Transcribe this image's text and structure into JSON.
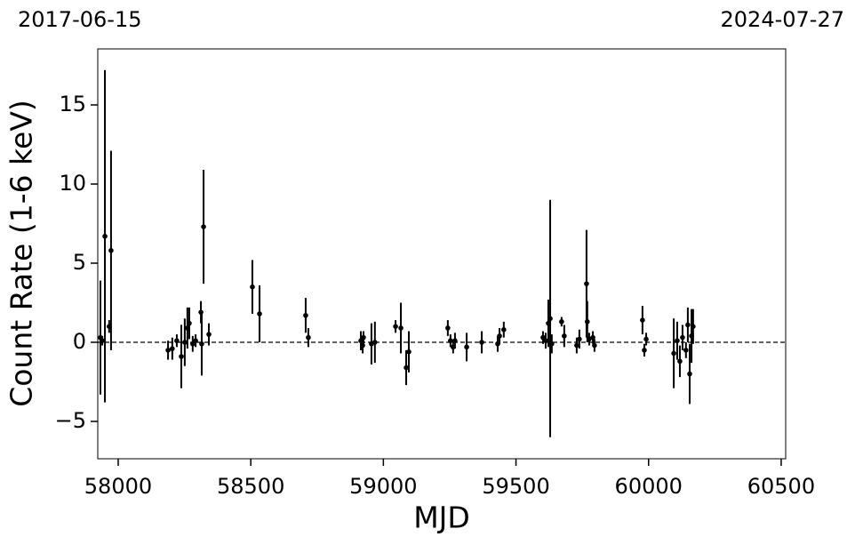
{
  "chart_data": {
    "type": "scatter",
    "xlabel": "MJD",
    "ylabel": "Count Rate (1-6 keV)",
    "annotations": [
      "2017-06-15",
      "2024-07-27"
    ],
    "xlim": [
      57923,
      60517
    ],
    "ylim": [
      -7.36,
      18.54
    ],
    "xticks": [
      58000,
      58500,
      59000,
      59500,
      60000,
      60500
    ],
    "yticks": [
      {
        "value": -5,
        "label": "−5"
      },
      0,
      5,
      10,
      15
    ],
    "hline": 0,
    "series": [
      {
        "color": "#000000",
        "x": [
          57933,
          57940,
          57950,
          57966,
          57973,
          58188,
          58204,
          58221,
          58238,
          58251,
          58261,
          58268,
          58281,
          58292,
          58312,
          58315,
          58322,
          58342,
          58506,
          58533,
          58707,
          58717,
          58915,
          58922,
          58925,
          58955,
          58968,
          59046,
          59066,
          59086,
          59096,
          59243,
          59253,
          59263,
          59270,
          59314,
          59371,
          59431,
          59438,
          59454,
          59602,
          59612,
          59622,
          59629,
          59635,
          59672,
          59682,
          59729,
          59739,
          59766,
          59769,
          59776,
          59790,
          59796,
          59977,
          59984,
          59991,
          60095,
          60108,
          60118,
          60128,
          60141,
          60148,
          60155,
          60162,
          60168
        ],
        "values": [
          0.3,
          0.1,
          6.7,
          1.0,
          5.8,
          -0.5,
          -0.4,
          0.1,
          -0.9,
          0.0,
          0.9,
          1.2,
          -0.1,
          0.1,
          1.9,
          -0.1,
          7.3,
          0.5,
          3.5,
          1.8,
          1.7,
          0.3,
          0.1,
          -0.2,
          0.3,
          -0.1,
          0.0,
          1.0,
          0.9,
          -1.6,
          -0.6,
          0.9,
          0.1,
          -0.3,
          0.1,
          -0.3,
          0.0,
          -0.1,
          0.4,
          0.8,
          0.3,
          0.1,
          1.2,
          1.5,
          -0.1,
          1.3,
          0.4,
          -0.2,
          0.2,
          3.7,
          1.3,
          0.2,
          0.3,
          -0.2,
          1.4,
          -0.5,
          0.2,
          -0.7,
          0.1,
          -1.2,
          0.3,
          -0.5,
          1.1,
          -2.0,
          0.4,
          1.0
        ],
        "errors": [
          3.6,
          0.3,
          10.5,
          0.4,
          6.3,
          0.6,
          0.7,
          0.4,
          2.0,
          1.5,
          1.3,
          1.0,
          0.5,
          0.4,
          0.7,
          2.0,
          3.6,
          0.7,
          1.7,
          1.8,
          1.1,
          0.6,
          0.6,
          0.5,
          0.4,
          1.3,
          1.3,
          0.4,
          1.6,
          1.1,
          1.3,
          0.5,
          0.4,
          0.4,
          0.5,
          0.9,
          0.7,
          0.5,
          0.5,
          0.5,
          0.4,
          0.5,
          1.5,
          7.5,
          0.6,
          0.3,
          0.7,
          0.5,
          0.6,
          3.4,
          1.3,
          0.4,
          0.4,
          0.4,
          0.9,
          0.4,
          0.4,
          2.2,
          1.2,
          1.0,
          0.8,
          0.5,
          1.1,
          1.9,
          1.7,
          1.1
        ]
      }
    ]
  }
}
